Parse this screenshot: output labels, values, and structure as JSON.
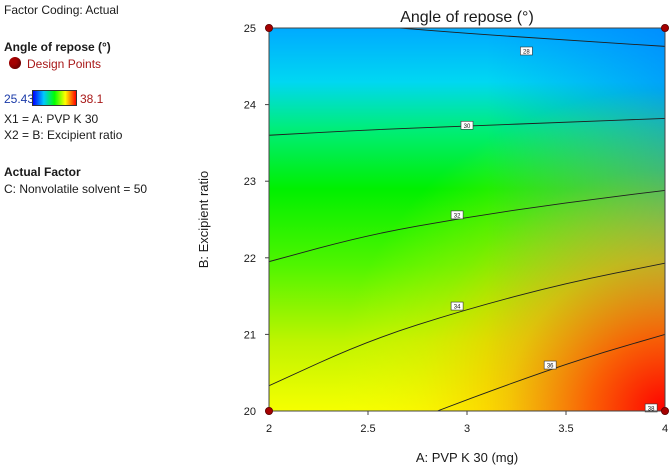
{
  "panel": {
    "factor_coding": "Factor Coding: Actual",
    "response_name": "Angle of repose (°)",
    "design_points_label": "Design Points",
    "colorbar_min": "25.43",
    "colorbar_max": "38.1",
    "x1_def": "X1 = A: PVP K 30",
    "x2_def": "X2 = B: Excipient ratio",
    "actual_factor_heading": "Actual Factor",
    "actual_factor_value": "C: Nonvolatile solvent  = 50",
    "colors": {
      "design_point": "#a50000",
      "min_text": "#1a3aa8",
      "max_text": "#a81818"
    }
  },
  "chart_data": {
    "type": "contour",
    "title": "Angle of repose (°)",
    "xlabel": "A: PVP K 30 (mg)",
    "ylabel": "B: Excipient ratio",
    "xlim": [
      2,
      4
    ],
    "ylim": [
      20,
      25
    ],
    "x_ticks": [
      2,
      2.5,
      3,
      3.5,
      4
    ],
    "x_tick_labels": [
      "2",
      "2.5",
      "3",
      "3.5",
      "4"
    ],
    "y_ticks": [
      20,
      21,
      22,
      23,
      24,
      25
    ],
    "y_tick_labels": [
      "20",
      "21",
      "22",
      "23",
      "24",
      "25"
    ],
    "response_range": [
      25.43,
      38.1
    ],
    "design_points": [
      {
        "x": 2,
        "y": 20
      },
      {
        "x": 4,
        "y": 20
      },
      {
        "x": 2,
        "y": 25
      },
      {
        "x": 4,
        "y": 25
      }
    ],
    "contours": [
      {
        "level": "28",
        "label_at": {
          "x": 3.3,
          "y": 24.7
        },
        "points": [
          [
            2.66,
            25
          ],
          [
            3.0,
            24.93
          ],
          [
            3.4,
            24.86
          ],
          [
            4,
            24.76
          ]
        ]
      },
      {
        "level": "30",
        "label_at": {
          "x": 3.0,
          "y": 23.73
        },
        "points": [
          [
            2,
            23.6
          ],
          [
            2.5,
            23.67
          ],
          [
            3,
            23.72
          ],
          [
            3.5,
            23.77
          ],
          [
            4,
            23.82
          ]
        ]
      },
      {
        "level": "32",
        "label_at": {
          "x": 2.95,
          "y": 22.56
        },
        "points": [
          [
            2,
            21.95
          ],
          [
            2.5,
            22.3
          ],
          [
            3,
            22.53
          ],
          [
            3.5,
            22.72
          ],
          [
            4,
            22.88
          ]
        ]
      },
      {
        "level": "34",
        "label_at": {
          "x": 2.95,
          "y": 21.37
        },
        "points": [
          [
            2,
            20.33
          ],
          [
            2.5,
            20.92
          ],
          [
            3,
            21.33
          ],
          [
            3.5,
            21.67
          ],
          [
            4,
            21.93
          ]
        ]
      },
      {
        "level": "36",
        "label_at": {
          "x": 3.42,
          "y": 20.6
        },
        "points": [
          [
            2.85,
            20
          ],
          [
            3.2,
            20.34
          ],
          [
            3.6,
            20.7
          ],
          [
            4,
            21.0
          ]
        ]
      },
      {
        "level": "38",
        "label_at": {
          "x": 3.93,
          "y": 20.04
        },
        "points": []
      }
    ]
  }
}
